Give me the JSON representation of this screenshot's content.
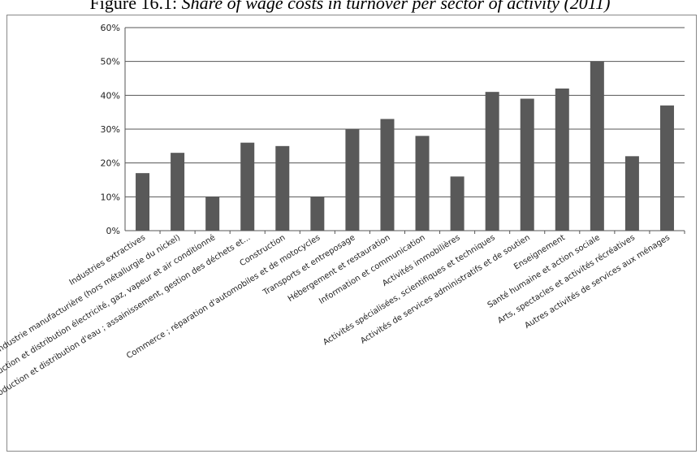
{
  "caption": {
    "label": "Figure 16.1:",
    "title": "Share of wage costs in turnover per sector of activity (2011)"
  },
  "colors": {
    "bar": "#595959",
    "axis": "#555555",
    "gridline": "#555555",
    "frame": "#888888"
  },
  "chart_data": {
    "type": "bar",
    "title": "",
    "xlabel": "",
    "ylabel": "",
    "ylim": [
      0,
      0.6
    ],
    "yticks": [
      "0%",
      "10%",
      "20%",
      "30%",
      "40%",
      "50%",
      "60%"
    ],
    "grid": "horizontal",
    "categories": [
      "Industries extractives",
      "Industrie manufacturière (hors métallurgie du nickel)",
      "Production et distribution électricité, gaz, vapeur et air conditionné",
      "Production et distribution d'eau ; assainissement, gestion des déchets et...",
      "Construction",
      "Commerce ; réparation d'automobiles et de motocycles",
      "Transports et entreposage",
      "Hébergement et restauration",
      "Information et communication",
      "Activités immobilières",
      "Activités spécialisées, scientifiques et techniques",
      "Activités de services administratifs et de soutien",
      "Enseignement",
      "Santé humaine et action sociale",
      "Arts, spectacles et activités récréatives",
      "Autres activités de services aux ménages"
    ],
    "values": [
      0.17,
      0.23,
      0.1,
      0.26,
      0.25,
      0.1,
      0.3,
      0.33,
      0.28,
      0.16,
      0.41,
      0.39,
      0.42,
      0.5,
      0.22,
      0.37
    ]
  }
}
